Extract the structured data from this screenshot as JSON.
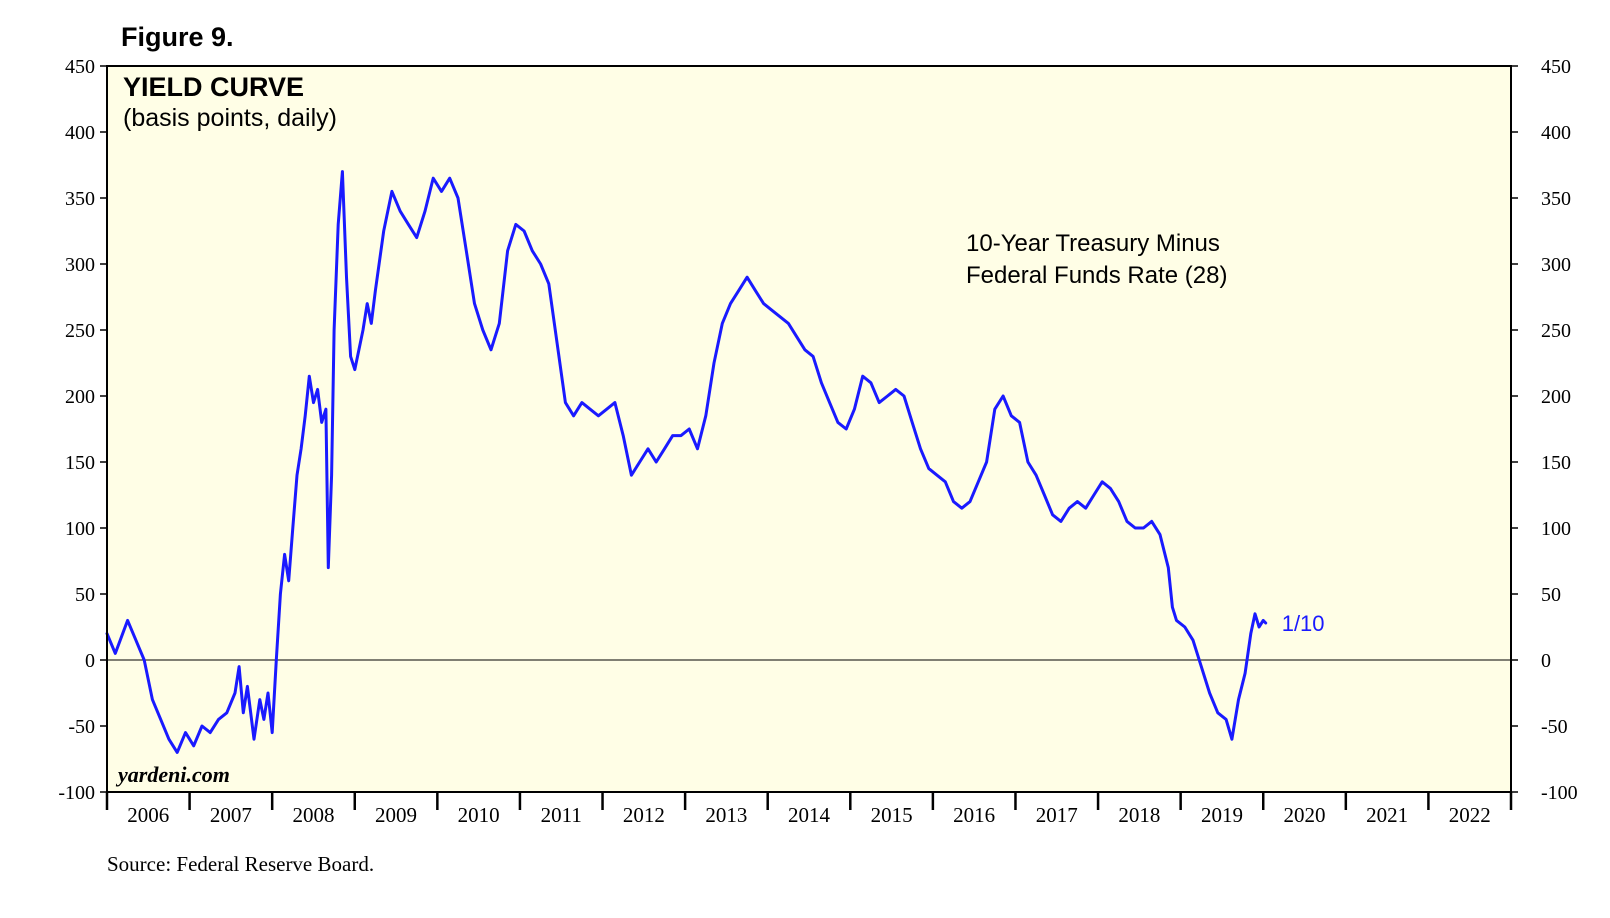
{
  "figure_label": "Figure 9.",
  "source": "Source: Federal Reserve Board.",
  "watermark": "yardeni.com",
  "colors": {
    "plot_background": "#fffee6",
    "series_line": "#1a1aff",
    "axis": "#000000"
  },
  "chart_data": {
    "type": "line",
    "title": "YIELD CURVE",
    "subtitle": "(basis points, daily)",
    "annotation_lines": [
      "10-Year Treasury Minus",
      "Federal Funds Rate (28)"
    ],
    "end_label": "1/10",
    "ylim": [
      -100,
      450
    ],
    "yticks": [
      -100,
      -50,
      0,
      50,
      100,
      150,
      200,
      250,
      300,
      350,
      400,
      450
    ],
    "y_axis_sides": "both",
    "zero_line": true,
    "xlim": [
      2006.0,
      2023.0
    ],
    "x_tick_labels": [
      "2006",
      "2007",
      "2008",
      "2009",
      "2010",
      "2011",
      "2012",
      "2013",
      "2014",
      "2015",
      "2016",
      "2017",
      "2018",
      "2019",
      "2020",
      "2021",
      "2022"
    ],
    "grid": false,
    "series": [
      {
        "points": [
          [
            2006.0,
            20
          ],
          [
            2006.1,
            5
          ],
          [
            2006.25,
            30
          ],
          [
            2006.35,
            15
          ],
          [
            2006.45,
            0
          ],
          [
            2006.55,
            -30
          ],
          [
            2006.65,
            -45
          ],
          [
            2006.75,
            -60
          ],
          [
            2006.85,
            -70
          ],
          [
            2006.95,
            -55
          ],
          [
            2007.05,
            -65
          ],
          [
            2007.15,
            -50
          ],
          [
            2007.25,
            -55
          ],
          [
            2007.35,
            -45
          ],
          [
            2007.45,
            -40
          ],
          [
            2007.55,
            -25
          ],
          [
            2007.6,
            -5
          ],
          [
            2007.65,
            -40
          ],
          [
            2007.7,
            -20
          ],
          [
            2007.78,
            -60
          ],
          [
            2007.85,
            -30
          ],
          [
            2007.9,
            -45
          ],
          [
            2007.95,
            -25
          ],
          [
            2008.0,
            -55
          ],
          [
            2008.05,
            0
          ],
          [
            2008.1,
            50
          ],
          [
            2008.15,
            80
          ],
          [
            2008.2,
            60
          ],
          [
            2008.25,
            100
          ],
          [
            2008.3,
            140
          ],
          [
            2008.35,
            160
          ],
          [
            2008.4,
            185
          ],
          [
            2008.45,
            215
          ],
          [
            2008.5,
            195
          ],
          [
            2008.55,
            205
          ],
          [
            2008.6,
            180
          ],
          [
            2008.65,
            190
          ],
          [
            2008.68,
            70
          ],
          [
            2008.72,
            140
          ],
          [
            2008.75,
            250
          ],
          [
            2008.8,
            330
          ],
          [
            2008.85,
            370
          ],
          [
            2008.9,
            290
          ],
          [
            2008.95,
            230
          ],
          [
            2009.0,
            220
          ],
          [
            2009.05,
            235
          ],
          [
            2009.1,
            250
          ],
          [
            2009.15,
            270
          ],
          [
            2009.2,
            255
          ],
          [
            2009.25,
            280
          ],
          [
            2009.35,
            325
          ],
          [
            2009.45,
            355
          ],
          [
            2009.55,
            340
          ],
          [
            2009.65,
            330
          ],
          [
            2009.75,
            320
          ],
          [
            2009.85,
            340
          ],
          [
            2009.95,
            365
          ],
          [
            2010.05,
            355
          ],
          [
            2010.15,
            365
          ],
          [
            2010.25,
            350
          ],
          [
            2010.35,
            310
          ],
          [
            2010.45,
            270
          ],
          [
            2010.55,
            250
          ],
          [
            2010.65,
            235
          ],
          [
            2010.75,
            255
          ],
          [
            2010.85,
            310
          ],
          [
            2010.95,
            330
          ],
          [
            2011.05,
            325
          ],
          [
            2011.15,
            310
          ],
          [
            2011.25,
            300
          ],
          [
            2011.35,
            285
          ],
          [
            2011.45,
            240
          ],
          [
            2011.55,
            195
          ],
          [
            2011.65,
            185
          ],
          [
            2011.75,
            195
          ],
          [
            2011.85,
            190
          ],
          [
            2011.95,
            185
          ],
          [
            2012.05,
            190
          ],
          [
            2012.15,
            195
          ],
          [
            2012.25,
            170
          ],
          [
            2012.35,
            140
          ],
          [
            2012.45,
            150
          ],
          [
            2012.55,
            160
          ],
          [
            2012.65,
            150
          ],
          [
            2012.75,
            160
          ],
          [
            2012.85,
            170
          ],
          [
            2012.95,
            170
          ],
          [
            2013.05,
            175
          ],
          [
            2013.15,
            160
          ],
          [
            2013.25,
            185
          ],
          [
            2013.35,
            225
          ],
          [
            2013.45,
            255
          ],
          [
            2013.55,
            270
          ],
          [
            2013.65,
            280
          ],
          [
            2013.75,
            290
          ],
          [
            2013.85,
            280
          ],
          [
            2013.95,
            270
          ],
          [
            2014.05,
            265
          ],
          [
            2014.15,
            260
          ],
          [
            2014.25,
            255
          ],
          [
            2014.35,
            245
          ],
          [
            2014.45,
            235
          ],
          [
            2014.55,
            230
          ],
          [
            2014.65,
            210
          ],
          [
            2014.75,
            195
          ],
          [
            2014.85,
            180
          ],
          [
            2014.95,
            175
          ],
          [
            2015.05,
            190
          ],
          [
            2015.15,
            215
          ],
          [
            2015.25,
            210
          ],
          [
            2015.35,
            195
          ],
          [
            2015.45,
            200
          ],
          [
            2015.55,
            205
          ],
          [
            2015.65,
            200
          ],
          [
            2015.75,
            180
          ],
          [
            2015.85,
            160
          ],
          [
            2015.95,
            145
          ],
          [
            2016.05,
            140
          ],
          [
            2016.15,
            135
          ],
          [
            2016.25,
            120
          ],
          [
            2016.35,
            115
          ],
          [
            2016.45,
            120
          ],
          [
            2016.55,
            135
          ],
          [
            2016.65,
            150
          ],
          [
            2016.75,
            190
          ],
          [
            2016.85,
            200
          ],
          [
            2016.95,
            185
          ],
          [
            2017.05,
            180
          ],
          [
            2017.15,
            150
          ],
          [
            2017.25,
            140
          ],
          [
            2017.35,
            125
          ],
          [
            2017.45,
            110
          ],
          [
            2017.55,
            105
          ],
          [
            2017.65,
            115
          ],
          [
            2017.75,
            120
          ],
          [
            2017.85,
            115
          ],
          [
            2017.95,
            125
          ],
          [
            2018.05,
            135
          ],
          [
            2018.15,
            130
          ],
          [
            2018.25,
            120
          ],
          [
            2018.35,
            105
          ],
          [
            2018.45,
            100
          ],
          [
            2018.55,
            100
          ],
          [
            2018.65,
            105
          ],
          [
            2018.75,
            95
          ],
          [
            2018.85,
            70
          ],
          [
            2018.9,
            40
          ],
          [
            2018.95,
            30
          ],
          [
            2019.05,
            25
          ],
          [
            2019.15,
            15
          ],
          [
            2019.25,
            -5
          ],
          [
            2019.35,
            -25
          ],
          [
            2019.45,
            -40
          ],
          [
            2019.55,
            -45
          ],
          [
            2019.62,
            -60
          ],
          [
            2019.7,
            -30
          ],
          [
            2019.78,
            -10
          ],
          [
            2019.85,
            20
          ],
          [
            2019.9,
            35
          ],
          [
            2019.95,
            25
          ],
          [
            2020.0,
            30
          ],
          [
            2020.03,
            28
          ]
        ]
      }
    ]
  }
}
